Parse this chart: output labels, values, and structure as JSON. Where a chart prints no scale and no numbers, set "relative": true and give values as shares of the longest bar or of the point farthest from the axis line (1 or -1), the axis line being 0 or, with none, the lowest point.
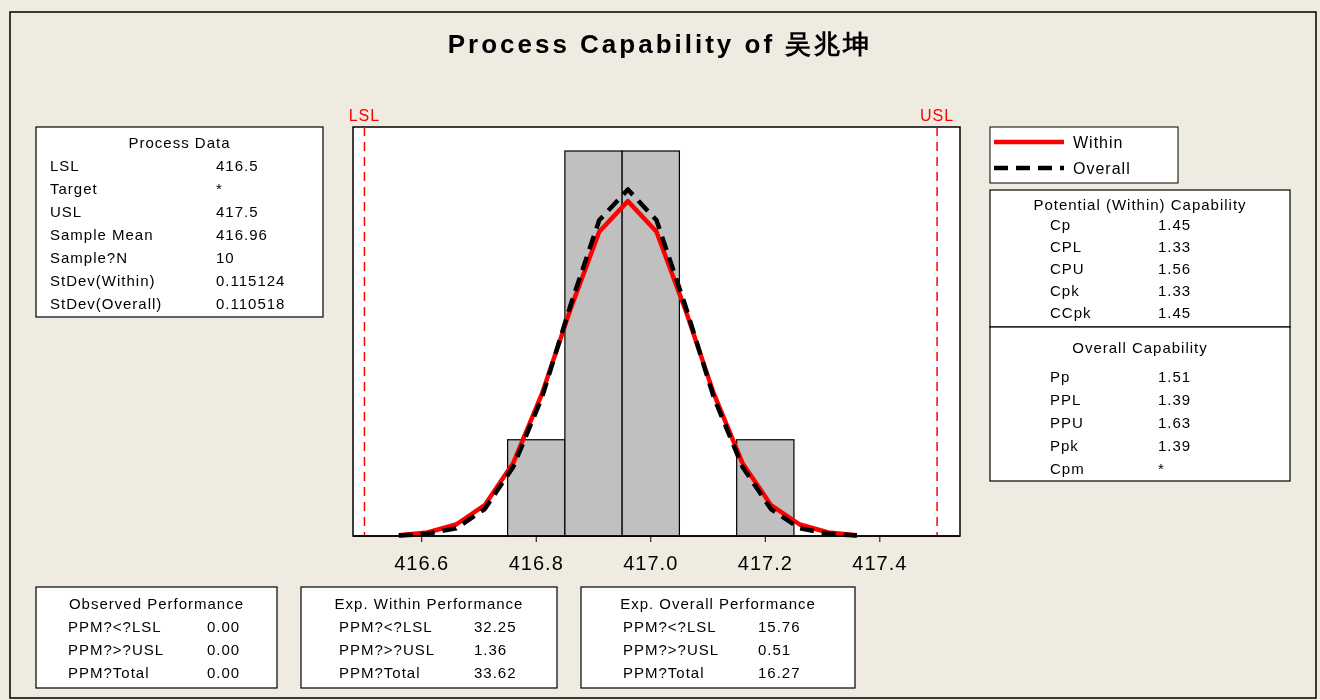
{
  "chart_data": {
    "type": "histogram",
    "title": "Process Capability of 吴兆坤",
    "relative": true,
    "bins": [
      416.75,
      416.85,
      416.95,
      417.05,
      417.15,
      417.25
    ],
    "values": [
      0.25,
      1,
      1,
      0,
      0.25
    ],
    "color": "#c0c0c0",
    "xlim": [
      416.48,
      417.54
    ],
    "xticks": [
      416.6,
      416.8,
      {
        "value": 417,
        "label": "417.0"
      },
      417.2,
      417.4
    ],
    "series": [
      {
        "name": "Within",
        "type": "line",
        "color": "#ff0000",
        "line_style": "solid",
        "x": [
          416.56,
          416.61,
          416.66,
          416.71,
          416.76,
          416.81,
          416.86,
          416.91,
          416.96,
          417.01,
          417.06,
          417.11,
          417.16,
          417.21,
          417.26,
          417.31,
          417.36
        ],
        "values": [
          0.002,
          0.009,
          0.03,
          0.08,
          0.19,
          0.37,
          0.59,
          0.79,
          0.87,
          0.79,
          0.59,
          0.37,
          0.19,
          0.08,
          0.03,
          0.009,
          0.002
        ]
      },
      {
        "name": "Overall",
        "type": "line",
        "color": "#000000",
        "line_style": "dashed",
        "x": [
          416.56,
          416.61,
          416.66,
          416.71,
          416.76,
          416.81,
          416.86,
          416.91,
          416.96,
          417.01,
          417.06,
          417.11,
          417.16,
          417.21,
          417.26,
          417.31,
          417.36
        ],
        "values": [
          0.001,
          0.006,
          0.02,
          0.07,
          0.18,
          0.36,
          0.6,
          0.82,
          0.9,
          0.82,
          0.6,
          0.36,
          0.18,
          0.07,
          0.02,
          0.006,
          0.001
        ]
      }
    ],
    "ref_lines": [
      {
        "axis": "x",
        "value": 416.5,
        "label": "LSL",
        "color": "#ff0000",
        "line_style": "dashed"
      },
      {
        "axis": "x",
        "value": 417.5,
        "label": "USL",
        "color": "#ff0000",
        "line_style": "dashed"
      }
    ],
    "legend": "top right",
    "annotations": [
      "Process Data",
      "LSL",
      "416.5",
      "Target",
      "*",
      "USL",
      "417.5",
      "Sample Mean",
      "416.96",
      "Sample?N",
      "10",
      "StDev(Within)",
      "0.115124",
      "StDev(Overall)",
      "0.110518",
      "Potential (Within) Capability",
      "Cp",
      "1.45",
      "CPL",
      "1.33",
      "CPU",
      "1.56",
      "Cpk",
      "1.33",
      "CCpk",
      "1.45",
      "Overall Capability",
      "Pp",
      "1.51",
      "PPL",
      "1.39",
      "PPU",
      "1.63",
      "Ppk",
      "1.39",
      "Cpm",
      "*",
      "Observed Performance",
      "PPM?<?LSL",
      "0.00",
      "PPM?>?USL",
      "0.00",
      "PPM?Total",
      "0.00",
      "Exp. Within Performance",
      "PPM?<?LSL",
      "32.25",
      "PPM?>?USL",
      "1.36",
      "PPM?Total",
      "33.62",
      "Exp. Overall Performance",
      "PPM?<?LSL",
      "15.76",
      "PPM?>?USL",
      "0.51",
      "PPM?Total",
      "16.27"
    ]
  }
}
